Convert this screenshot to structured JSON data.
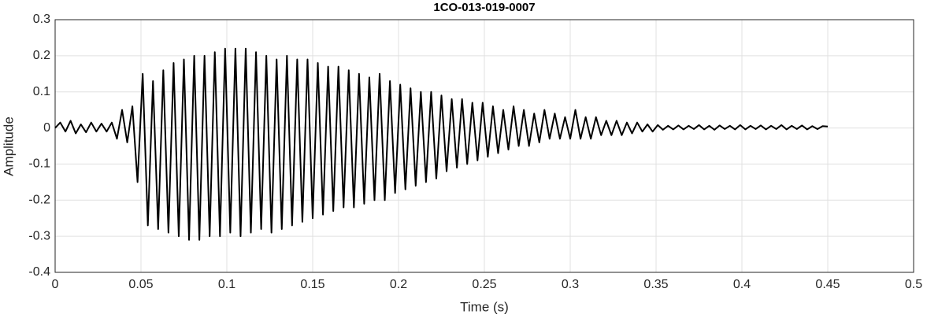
{
  "chart_data": {
    "type": "line",
    "title": "1CO-013-019-0007",
    "xlabel": "Time (s)",
    "ylabel": "Amplitude",
    "x": [
      0,
      0.003,
      0.006,
      0.009,
      0.012,
      0.015,
      0.018,
      0.021,
      0.024,
      0.027,
      0.03,
      0.033,
      0.036,
      0.039,
      0.042,
      0.045,
      0.048,
      0.051,
      0.054,
      0.057,
      0.06,
      0.063,
      0.066,
      0.069,
      0.072,
      0.075,
      0.078,
      0.081,
      0.084,
      0.087,
      0.09,
      0.093,
      0.096,
      0.099,
      0.102,
      0.105,
      0.108,
      0.111,
      0.114,
      0.117,
      0.12,
      0.123,
      0.126,
      0.129,
      0.132,
      0.135,
      0.138,
      0.141,
      0.144,
      0.147,
      0.15,
      0.153,
      0.156,
      0.159,
      0.162,
      0.165,
      0.168,
      0.171,
      0.174,
      0.177,
      0.18,
      0.183,
      0.186,
      0.189,
      0.192,
      0.195,
      0.198,
      0.201,
      0.204,
      0.207,
      0.21,
      0.213,
      0.216,
      0.219,
      0.222,
      0.225,
      0.228,
      0.231,
      0.234,
      0.237,
      0.24,
      0.243,
      0.246,
      0.249,
      0.252,
      0.255,
      0.258,
      0.261,
      0.264,
      0.267,
      0.27,
      0.273,
      0.276,
      0.279,
      0.282,
      0.285,
      0.288,
      0.291,
      0.294,
      0.297,
      0.3,
      0.303,
      0.306,
      0.309,
      0.312,
      0.315,
      0.318,
      0.321,
      0.324,
      0.327,
      0.33,
      0.333,
      0.336,
      0.339,
      0.342,
      0.345,
      0.348,
      0.351,
      0.354,
      0.357,
      0.36,
      0.363,
      0.366,
      0.369,
      0.372,
      0.375,
      0.378,
      0.381,
      0.384,
      0.387,
      0.39,
      0.393,
      0.396,
      0.399,
      0.402,
      0.405,
      0.408,
      0.411,
      0.414,
      0.417,
      0.42,
      0.423,
      0.426,
      0.429,
      0.432,
      0.435,
      0.438,
      0.441,
      0.444,
      0.447,
      0.45
    ],
    "values": [
      0,
      0.015,
      -0.01,
      0.02,
      -0.015,
      0.01,
      -0.012,
      0.015,
      -0.01,
      0.012,
      -0.01,
      0.015,
      -0.03,
      0.05,
      -0.04,
      0.06,
      -0.15,
      0.15,
      -0.27,
      0.13,
      -0.28,
      0.16,
      -0.29,
      0.18,
      -0.3,
      0.19,
      -0.31,
      0.2,
      -0.31,
      0.2,
      -0.3,
      0.21,
      -0.3,
      0.22,
      -0.29,
      0.22,
      -0.3,
      0.22,
      -0.29,
      0.21,
      -0.28,
      0.2,
      -0.29,
      0.19,
      -0.28,
      0.2,
      -0.27,
      0.19,
      -0.26,
      0.19,
      -0.25,
      0.18,
      -0.24,
      0.17,
      -0.23,
      0.17,
      -0.22,
      0.16,
      -0.22,
      0.15,
      -0.21,
      0.14,
      -0.2,
      0.15,
      -0.2,
      0.13,
      -0.18,
      0.12,
      -0.17,
      0.11,
      -0.16,
      0.1,
      -0.15,
      0.1,
      -0.14,
      0.09,
      -0.12,
      0.08,
      -0.11,
      0.08,
      -0.1,
      0.07,
      -0.09,
      0.07,
      -0.08,
      0.06,
      -0.07,
      0.05,
      -0.06,
      0.06,
      -0.05,
      0.05,
      -0.05,
      0.04,
      -0.04,
      0.05,
      -0.03,
      0.04,
      -0.03,
      0.03,
      -0.03,
      0.05,
      -0.03,
      0.03,
      -0.03,
      0.03,
      -0.02,
      0.02,
      -0.02,
      0.02,
      -0.02,
      0.015,
      -0.015,
      0.015,
      -0.01,
      0.01,
      -0.01,
      0.008,
      -0.005,
      0.006,
      -0.004,
      0.007,
      -0.004,
      0.006,
      -0.003,
      0.008,
      -0.004,
      0.006,
      -0.005,
      0.007,
      -0.003,
      0.006,
      -0.004,
      0.008,
      -0.004,
      0.006,
      -0.003,
      0.007,
      -0.004,
      0.006,
      -0.003,
      0.008,
      -0.004,
      0.006,
      -0.003,
      0.007,
      -0.004,
      0.005,
      -0.003,
      0.005,
      0.004
    ],
    "color": "#000000",
    "xlim": [
      0,
      0.5
    ],
    "xticks": [
      0,
      0.05,
      0.1,
      0.15,
      0.2,
      0.25,
      0.3,
      0.35,
      0.4,
      0.45,
      0.5
    ],
    "ylim": [
      -0.4,
      0.3
    ],
    "yticks": [
      -0.4,
      -0.3,
      -0.2,
      -0.1,
      0,
      0.1,
      0.2,
      0.3
    ],
    "grid": true
  }
}
